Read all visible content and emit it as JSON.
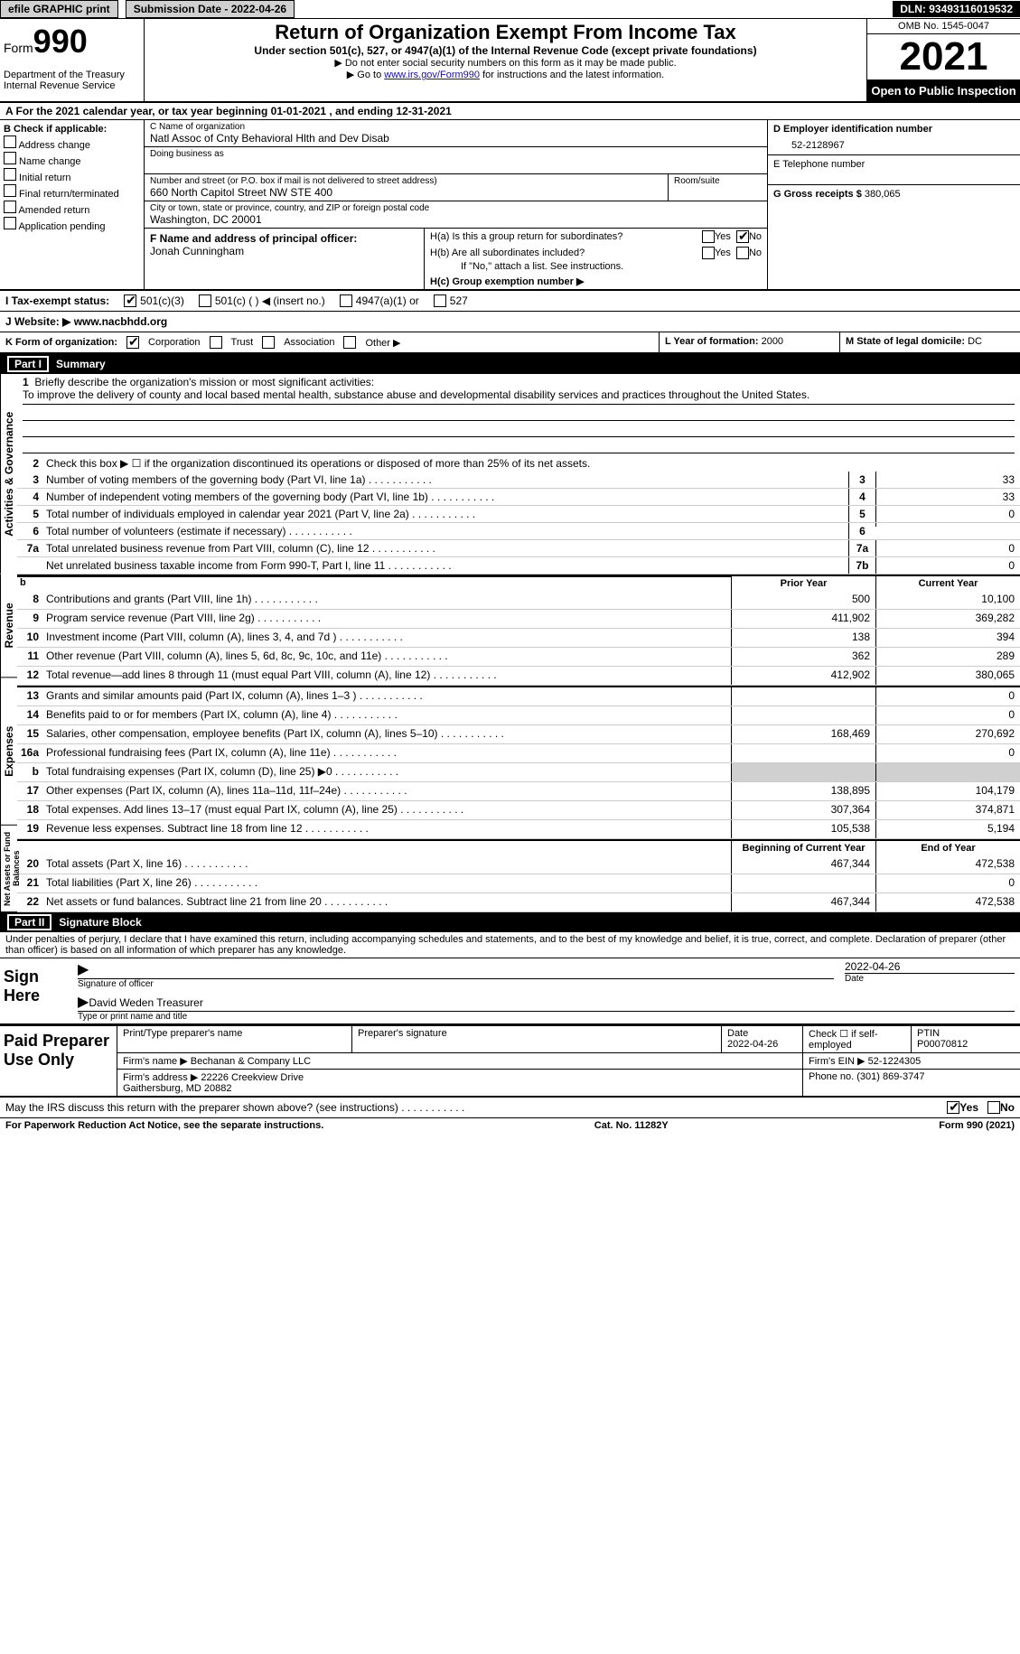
{
  "topbar": {
    "efile_label": "efile GRAPHIC print",
    "sub_date_label": "Submission Date - 2022-04-26",
    "dln_label": "DLN: 93493116019532"
  },
  "header": {
    "form_word": "Form",
    "form_number": "990",
    "dept": "Department of the Treasury\nInternal Revenue Service",
    "title": "Return of Organization Exempt From Income Tax",
    "subtitle": "Under section 501(c), 527, or 4947(a)(1) of the Internal Revenue Code (except private foundations)",
    "instr1": "▶ Do not enter social security numbers on this form as it may be made public.",
    "instr2_prefix": "▶ Go to ",
    "instr2_link": "www.irs.gov/Form990",
    "instr2_suffix": " for instructions and the latest information.",
    "omb": "OMB No. 1545-0047",
    "year": "2021",
    "open_insp": "Open to Public Inspection"
  },
  "sectionA": {
    "text_prefix": "A For the 2021 calendar year, or tax year beginning ",
    "begin": "01-01-2021",
    "mid": " , and ending ",
    "end": "12-31-2021"
  },
  "colB": {
    "header": "B Check if applicable:",
    "opts": [
      "Address change",
      "Name change",
      "Initial return",
      "Final return/terminated",
      "Amended return",
      "Application pending"
    ]
  },
  "orginfo": {
    "name_lbl": "C Name of organization",
    "name_val": "Natl Assoc of Cnty Behavioral Hlth and Dev Disab",
    "dba_lbl": "Doing business as",
    "addr_lbl": "Number and street (or P.O. box if mail is not delivered to street address)",
    "addr_val": "660 North Capitol Street NW STE 400",
    "room_lbl": "Room/suite",
    "city_lbl": "City or town, state or province, country, and ZIP or foreign postal code",
    "city_val": "Washington, DC  20001",
    "officer_lbl": "F Name and address of principal officer:",
    "officer_val": "Jonah Cunningham"
  },
  "colD": {
    "ein_lbl": "D Employer identification number",
    "ein_val": "52-2128967",
    "phone_lbl": "E Telephone number",
    "gross_lbl": "G Gross receipts $",
    "gross_val": "380,065"
  },
  "sectionH": {
    "ha": "H(a)  Is this a group return for subordinates?",
    "hb": "H(b)  Are all subordinates included?",
    "hb_note": "If \"No,\" attach a list. See instructions.",
    "hc": "H(c)  Group exemption number ▶",
    "yes": "Yes",
    "no": "No"
  },
  "sectionI": {
    "label": "I    Tax-exempt status:",
    "opt1": "501(c)(3)",
    "opt2": "501(c) (   ) ◀ (insert no.)",
    "opt3": "4947(a)(1) or",
    "opt4": "527"
  },
  "sectionJ": {
    "label": "J   Website: ▶",
    "val": "  www.nacbhdd.org"
  },
  "sectionK": {
    "label": "K Form of organization:",
    "corp": "Corporation",
    "trust": "Trust",
    "assoc": "Association",
    "other": "Other ▶"
  },
  "sectionL": {
    "label": "L Year of formation:",
    "val": "2000"
  },
  "sectionM": {
    "label": "M State of legal domicile:",
    "val": "DC"
  },
  "part1": {
    "header_num": "Part I",
    "header_title": "Summary",
    "line1_intro": "Briefly describe the organization's mission or most significant activities:",
    "line1_body": "To improve the delivery of county and local based mental health, substance abuse and developmental disability services and practices throughout the United States.",
    "line2": "Check this box ▶ ☐ if the organization discontinued its operations or disposed of more than 25% of its net assets.",
    "vtext_ag": "Activities & Governance",
    "vtext_rev": "Revenue",
    "vtext_exp": "Expenses",
    "vtext_net": "Net Assets or Fund Balances",
    "lines_ag": [
      {
        "n": "3",
        "d": "Number of voting members of the governing body (Part VI, line 1a)",
        "box": "3",
        "v": "33"
      },
      {
        "n": "4",
        "d": "Number of independent voting members of the governing body (Part VI, line 1b)",
        "box": "4",
        "v": "33"
      },
      {
        "n": "5",
        "d": "Total number of individuals employed in calendar year 2021 (Part V, line 2a)",
        "box": "5",
        "v": "0"
      },
      {
        "n": "6",
        "d": "Total number of volunteers (estimate if necessary)",
        "box": "6",
        "v": ""
      },
      {
        "n": "7a",
        "d": "Total unrelated business revenue from Part VIII, column (C), line 12",
        "box": "7a",
        "v": "0"
      },
      {
        "n": "",
        "d": "Net unrelated business taxable income from Form 990-T, Part I, line 11",
        "box": "7b",
        "v": "0"
      }
    ],
    "col_prior": "Prior Year",
    "col_current": "Current Year",
    "lines_rev": [
      {
        "n": "8",
        "d": "Contributions and grants (Part VIII, line 1h)",
        "p": "500",
        "c": "10,100"
      },
      {
        "n": "9",
        "d": "Program service revenue (Part VIII, line 2g)",
        "p": "411,902",
        "c": "369,282"
      },
      {
        "n": "10",
        "d": "Investment income (Part VIII, column (A), lines 3, 4, and 7d )",
        "p": "138",
        "c": "394"
      },
      {
        "n": "11",
        "d": "Other revenue (Part VIII, column (A), lines 5, 6d, 8c, 9c, 10c, and 11e)",
        "p": "362",
        "c": "289"
      },
      {
        "n": "12",
        "d": "Total revenue—add lines 8 through 11 (must equal Part VIII, column (A), line 12)",
        "p": "412,902",
        "c": "380,065"
      }
    ],
    "lines_exp": [
      {
        "n": "13",
        "d": "Grants and similar amounts paid (Part IX, column (A), lines 1–3 )",
        "p": "",
        "c": "0"
      },
      {
        "n": "14",
        "d": "Benefits paid to or for members (Part IX, column (A), line 4)",
        "p": "",
        "c": "0"
      },
      {
        "n": "15",
        "d": "Salaries, other compensation, employee benefits (Part IX, column (A), lines 5–10)",
        "p": "168,469",
        "c": "270,692"
      },
      {
        "n": "16a",
        "d": "Professional fundraising fees (Part IX, column (A), line 11e)",
        "p": "",
        "c": "0"
      },
      {
        "n": "b",
        "d": "Total fundraising expenses (Part IX, column (D), line 25) ▶0",
        "p": "GREY",
        "c": "GREY"
      },
      {
        "n": "17",
        "d": "Other expenses (Part IX, column (A), lines 11a–11d, 11f–24e)",
        "p": "138,895",
        "c": "104,179"
      },
      {
        "n": "18",
        "d": "Total expenses. Add lines 13–17 (must equal Part IX, column (A), line 25)",
        "p": "307,364",
        "c": "374,871"
      },
      {
        "n": "19",
        "d": "Revenue less expenses. Subtract line 18 from line 12",
        "p": "105,538",
        "c": "5,194"
      }
    ],
    "col_begin": "Beginning of Current Year",
    "col_end": "End of Year",
    "lines_net": [
      {
        "n": "20",
        "d": "Total assets (Part X, line 16)",
        "p": "467,344",
        "c": "472,538"
      },
      {
        "n": "21",
        "d": "Total liabilities (Part X, line 26)",
        "p": "",
        "c": "0"
      },
      {
        "n": "22",
        "d": "Net assets or fund balances. Subtract line 21 from line 20",
        "p": "467,344",
        "c": "472,538"
      }
    ]
  },
  "part2": {
    "header_num": "Part II",
    "header_title": "Signature Block",
    "declaration": "Under penalties of perjury, I declare that I have examined this return, including accompanying schedules and statements, and to the best of my knowledge and belief, it is true, correct, and complete. Declaration of preparer (other than officer) is based on all information of which preparer has any knowledge.",
    "sign_here": "Sign Here",
    "sig_officer": "Signature of officer",
    "sig_date": "2022-04-26",
    "date_lbl": "Date",
    "officer_name": "David Weden  Treasurer",
    "type_name": "Type or print name and title",
    "paid_prep": "Paid Preparer Use Only",
    "print_name_lbl": "Print/Type preparer's name",
    "prep_sig_lbl": "Preparer's signature",
    "date2_lbl": "Date",
    "date2_val": "2022-04-26",
    "self_emp": "Check ☐ if self-employed",
    "ptin_lbl": "PTIN",
    "ptin_val": "P00070812",
    "firm_name_lbl": "Firm's name    ▶",
    "firm_name_val": "Bechanan & Company LLC",
    "firm_ein_lbl": "Firm's EIN ▶",
    "firm_ein_val": "52-1224305",
    "firm_addr_lbl": "Firm's address ▶",
    "firm_addr_val": "22226 Creekview Drive\nGaithersburg, MD  20882",
    "phone_lbl": "Phone no.",
    "phone_val": "(301) 869-3747"
  },
  "footer": {
    "discuss": "May the IRS discuss this return with the preparer shown above? (see instructions)",
    "yes": "Yes",
    "no": "No",
    "paperwork": "For Paperwork Reduction Act Notice, see the separate instructions.",
    "cat": "Cat. No. 11282Y",
    "form": "Form 990 (2021)"
  }
}
